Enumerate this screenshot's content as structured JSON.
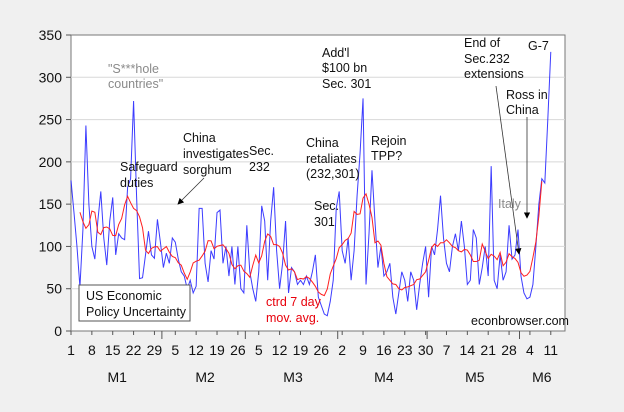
{
  "chart_data": {
    "type": "line",
    "xlabel": "",
    "ylabel": "",
    "ylim": [
      0,
      350
    ],
    "yticks": [
      0,
      50,
      100,
      150,
      200,
      250,
      300,
      350
    ],
    "grid": true,
    "x_tick_labels": [
      "1",
      "8",
      "15",
      "22",
      "29",
      "5",
      "12",
      "19",
      "26",
      "5",
      "12",
      "19",
      "26",
      "2",
      "9",
      "16",
      "23",
      "30",
      "7",
      "14",
      "21",
      "28",
      "4",
      "11"
    ],
    "month_labels": [
      "M1",
      "M2",
      "M3",
      "M4",
      "M5",
      "M6"
    ],
    "series": [
      {
        "name": "US Economic Policy Uncertainty",
        "color": "#1a1aff",
        "values": [
          178,
          140,
          100,
          52,
          120,
          243,
          150,
          100,
          85,
          130,
          165,
          110,
          78,
          130,
          158,
          90,
          115,
          110,
          108,
          170,
          180,
          272,
          160,
          62,
          63,
          90,
          118,
          90,
          86,
          132,
          105,
          75,
          92,
          80,
          110,
          105,
          85,
          70,
          65,
          50,
          60,
          45,
          53,
          145,
          145,
          80,
          58,
          95,
          85,
          140,
          143,
          80,
          100,
          65,
          100,
          55,
          100,
          50,
          45,
          125,
          70,
          50,
          35,
          70,
          148,
          130,
          60,
          130,
          170,
          95,
          50,
          80,
          130,
          45,
          75,
          70,
          55,
          60,
          55,
          65,
          55,
          70,
          90,
          40,
          30,
          20,
          18,
          35,
          60,
          145,
          165,
          95,
          80,
          110,
          60,
          95,
          160,
          210,
          275,
          55,
          115,
          190,
          130,
          75,
          100,
          65,
          70,
          80,
          40,
          20,
          45,
          70,
          60,
          35,
          70,
          60,
          25,
          55,
          80,
          100,
          40,
          100,
          90,
          120,
          160,
          110,
          80,
          70,
          100,
          115,
          95,
          130,
          100,
          55,
          60,
          120,
          110,
          55,
          75,
          100,
          65,
          195,
          60,
          50,
          90,
          60,
          70,
          125,
          85,
          90,
          120,
          65,
          45,
          38,
          40,
          55,
          100,
          150,
          180,
          175,
          250,
          330
        ]
      },
      {
        "name": "ctrd 7 day mov. avg.",
        "color": "#ff2020",
        "derived_from": "centered 7-day moving average of series 1"
      }
    ],
    "legend_box": [
      "US Economic",
      "Policy Uncertainty"
    ],
    "annotations": {
      "shithole": [
        "\"S***hole",
        "countries\""
      ],
      "safeguard": [
        "Safeguard",
        "duties"
      ],
      "sorghum": [
        "China",
        "investigates",
        "sorghum"
      ],
      "sec232": [
        "Sec.",
        "232"
      ],
      "retaliates": [
        "China",
        "retaliates",
        "(232,301)"
      ],
      "sec301": [
        "Sec.",
        "301"
      ],
      "add100": [
        "Add'l",
        "$100 bn",
        "Sec. 301"
      ],
      "tpp": [
        "Rejoin",
        "TPP?"
      ],
      "end232": [
        "End of",
        "Sec.232",
        "extensions"
      ],
      "ross": [
        "Ross in",
        "China"
      ],
      "italy": "Italy",
      "g7": "G-7",
      "ma_label": [
        "ctrd 7 day",
        "mov. avg."
      ],
      "source": "econbrowser.com"
    }
  }
}
